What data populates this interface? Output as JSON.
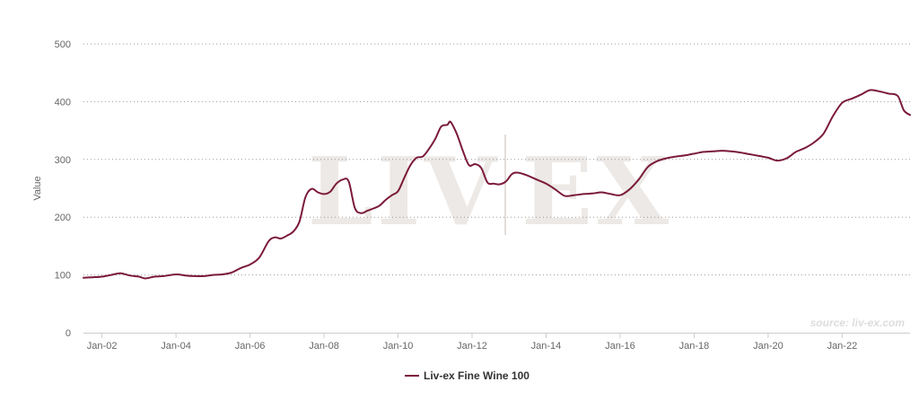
{
  "chart_data": {
    "type": "line",
    "title": "",
    "xlabel": "",
    "ylabel": "Value",
    "ylim": [
      0,
      500
    ],
    "xlim": [
      "2001-07",
      "2023-11"
    ],
    "yticks": [
      0,
      100,
      200,
      300,
      400,
      500
    ],
    "xticks": [
      {
        "date": "2002-01",
        "label": "Jan-02"
      },
      {
        "date": "2004-01",
        "label": "Jan-04"
      },
      {
        "date": "2006-01",
        "label": "Jan-06"
      },
      {
        "date": "2008-01",
        "label": "Jan-08"
      },
      {
        "date": "2010-01",
        "label": "Jan-10"
      },
      {
        "date": "2012-01",
        "label": "Jan-12"
      },
      {
        "date": "2014-01",
        "label": "Jan-14"
      },
      {
        "date": "2016-01",
        "label": "Jan-16"
      },
      {
        "date": "2018-01",
        "label": "Jan-18"
      },
      {
        "date": "2020-01",
        "label": "Jan-20"
      },
      {
        "date": "2022-01",
        "label": "Jan-22"
      }
    ],
    "grid": {
      "horizontal": true,
      "style": "dotted"
    },
    "legend": {
      "position": "bottom-center"
    },
    "watermark": "LIV|EX",
    "source": "source: liv-ex.com",
    "series": [
      {
        "name": "Liv-ex Fine Wine 100",
        "color": "#7b1a3a",
        "points": [
          [
            "2001-07",
            95
          ],
          [
            "2001-10",
            96
          ],
          [
            "2002-01",
            97
          ],
          [
            "2002-04",
            100
          ],
          [
            "2002-07",
            103
          ],
          [
            "2002-10",
            99
          ],
          [
            "2003-01",
            97
          ],
          [
            "2003-03",
            94
          ],
          [
            "2003-06",
            97
          ],
          [
            "2003-09",
            98
          ],
          [
            "2004-01",
            101
          ],
          [
            "2004-04",
            99
          ],
          [
            "2004-07",
            98
          ],
          [
            "2004-10",
            98
          ],
          [
            "2005-01",
            100
          ],
          [
            "2005-04",
            101
          ],
          [
            "2005-07",
            104
          ],
          [
            "2005-10",
            112
          ],
          [
            "2006-01",
            118
          ],
          [
            "2006-04",
            130
          ],
          [
            "2006-07",
            158
          ],
          [
            "2006-09",
            165
          ],
          [
            "2006-11",
            163
          ],
          [
            "2007-01",
            168
          ],
          [
            "2007-03",
            175
          ],
          [
            "2007-05",
            192
          ],
          [
            "2007-07",
            235
          ],
          [
            "2007-09",
            249
          ],
          [
            "2007-11",
            243
          ],
          [
            "2008-01",
            240
          ],
          [
            "2008-03",
            244
          ],
          [
            "2008-05",
            258
          ],
          [
            "2008-07",
            265
          ],
          [
            "2008-09",
            262
          ],
          [
            "2008-11",
            216
          ],
          [
            "2009-01",
            207
          ],
          [
            "2009-03",
            211
          ],
          [
            "2009-05",
            215
          ],
          [
            "2009-07",
            220
          ],
          [
            "2009-09",
            230
          ],
          [
            "2009-11",
            238
          ],
          [
            "2010-01",
            245
          ],
          [
            "2010-03",
            268
          ],
          [
            "2010-05",
            290
          ],
          [
            "2010-07",
            303
          ],
          [
            "2010-09",
            305
          ],
          [
            "2010-11",
            318
          ],
          [
            "2011-01",
            335
          ],
          [
            "2011-03",
            357
          ],
          [
            "2011-05",
            360
          ],
          [
            "2011-06",
            365
          ],
          [
            "2011-08",
            345
          ],
          [
            "2011-10",
            315
          ],
          [
            "2011-12",
            290
          ],
          [
            "2012-02",
            292
          ],
          [
            "2012-04",
            285
          ],
          [
            "2012-06",
            260
          ],
          [
            "2012-08",
            258
          ],
          [
            "2012-10",
            257
          ],
          [
            "2012-12",
            262
          ],
          [
            "2013-02",
            275
          ],
          [
            "2013-04",
            277
          ],
          [
            "2013-07",
            272
          ],
          [
            "2013-10",
            265
          ],
          [
            "2014-01",
            258
          ],
          [
            "2014-04",
            248
          ],
          [
            "2014-07",
            237
          ],
          [
            "2014-10",
            238
          ],
          [
            "2015-01",
            240
          ],
          [
            "2015-04",
            241
          ],
          [
            "2015-07",
            243
          ],
          [
            "2015-10",
            240
          ],
          [
            "2016-01",
            238
          ],
          [
            "2016-04",
            248
          ],
          [
            "2016-07",
            265
          ],
          [
            "2016-10",
            287
          ],
          [
            "2017-01",
            297
          ],
          [
            "2017-04",
            302
          ],
          [
            "2017-07",
            305
          ],
          [
            "2017-10",
            307
          ],
          [
            "2018-01",
            310
          ],
          [
            "2018-04",
            313
          ],
          [
            "2018-07",
            314
          ],
          [
            "2018-10",
            315
          ],
          [
            "2019-01",
            314
          ],
          [
            "2019-04",
            312
          ],
          [
            "2019-07",
            309
          ],
          [
            "2019-10",
            306
          ],
          [
            "2020-01",
            303
          ],
          [
            "2020-04",
            298
          ],
          [
            "2020-07",
            302
          ],
          [
            "2020-10",
            313
          ],
          [
            "2021-01",
            320
          ],
          [
            "2021-04",
            330
          ],
          [
            "2021-07",
            345
          ],
          [
            "2021-10",
            375
          ],
          [
            "2022-01",
            398
          ],
          [
            "2022-04",
            405
          ],
          [
            "2022-07",
            412
          ],
          [
            "2022-10",
            420
          ],
          [
            "2023-01",
            418
          ],
          [
            "2023-04",
            414
          ],
          [
            "2023-07",
            410
          ],
          [
            "2023-09",
            385
          ],
          [
            "2023-11",
            377
          ]
        ]
      }
    ]
  }
}
